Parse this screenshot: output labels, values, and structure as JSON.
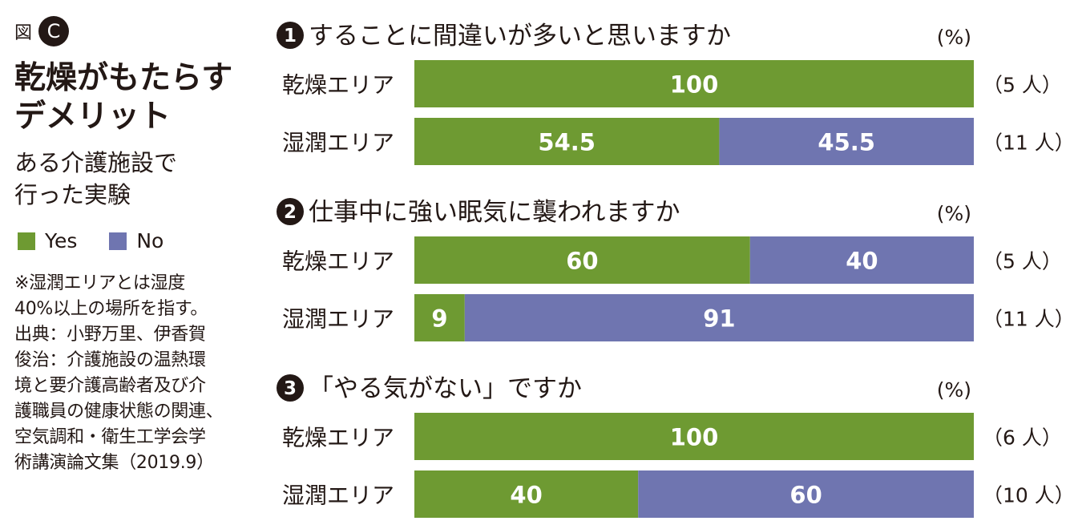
{
  "figure_label": "図",
  "figure_letter": "C",
  "title_line1": "乾燥がもたらす",
  "title_line2": "デメリット",
  "subtitle_line1": "ある介護施設で",
  "subtitle_line2": "行った実験",
  "legend": [
    {
      "name": "Yes",
      "color": "#6e9a32"
    },
    {
      "name": "No",
      "color": "#6f75b0"
    }
  ],
  "note_lines": [
    "※湿潤エリアとは湿度",
    "40%以上の場所を指す。",
    "出典：小野万里、伊香賀",
    "俊治：介護施設の温熱環",
    "境と要介護高齢者及び介",
    "護職員の健康状態の関連、",
    "空気調和・衛生工学会学",
    "術講演論文集（2019.9）"
  ],
  "chart_data": {
    "type": "bar",
    "orientation": "horizontal",
    "stacked": true,
    "unit": "(%)",
    "xlim": [
      0,
      100
    ],
    "series_names": [
      "Yes",
      "No"
    ],
    "panels": [
      {
        "number": "1",
        "question": "することに間違いが多いと思いますか",
        "unit": "(%)",
        "rows": [
          {
            "category": "乾燥エリア",
            "yes": 100,
            "no": 0,
            "count": "（5 人）"
          },
          {
            "category": "湿潤エリア",
            "yes": 54.5,
            "no": 45.5,
            "count": "（11 人）"
          }
        ]
      },
      {
        "number": "2",
        "question": "仕事中に強い眠気に襲われますか",
        "unit": "(%)",
        "rows": [
          {
            "category": "乾燥エリア",
            "yes": 60,
            "no": 40,
            "count": "（5 人）"
          },
          {
            "category": "湿潤エリア",
            "yes": 9,
            "no": 91,
            "count": "（11 人）"
          }
        ]
      },
      {
        "number": "3",
        "question": "「やる気がない」ですか",
        "unit": "(%)",
        "rows": [
          {
            "category": "乾燥エリア",
            "yes": 100,
            "no": 0,
            "count": "（6 人）"
          },
          {
            "category": "湿潤エリア",
            "yes": 40,
            "no": 60,
            "count": "（10 人）"
          }
        ]
      }
    ]
  }
}
